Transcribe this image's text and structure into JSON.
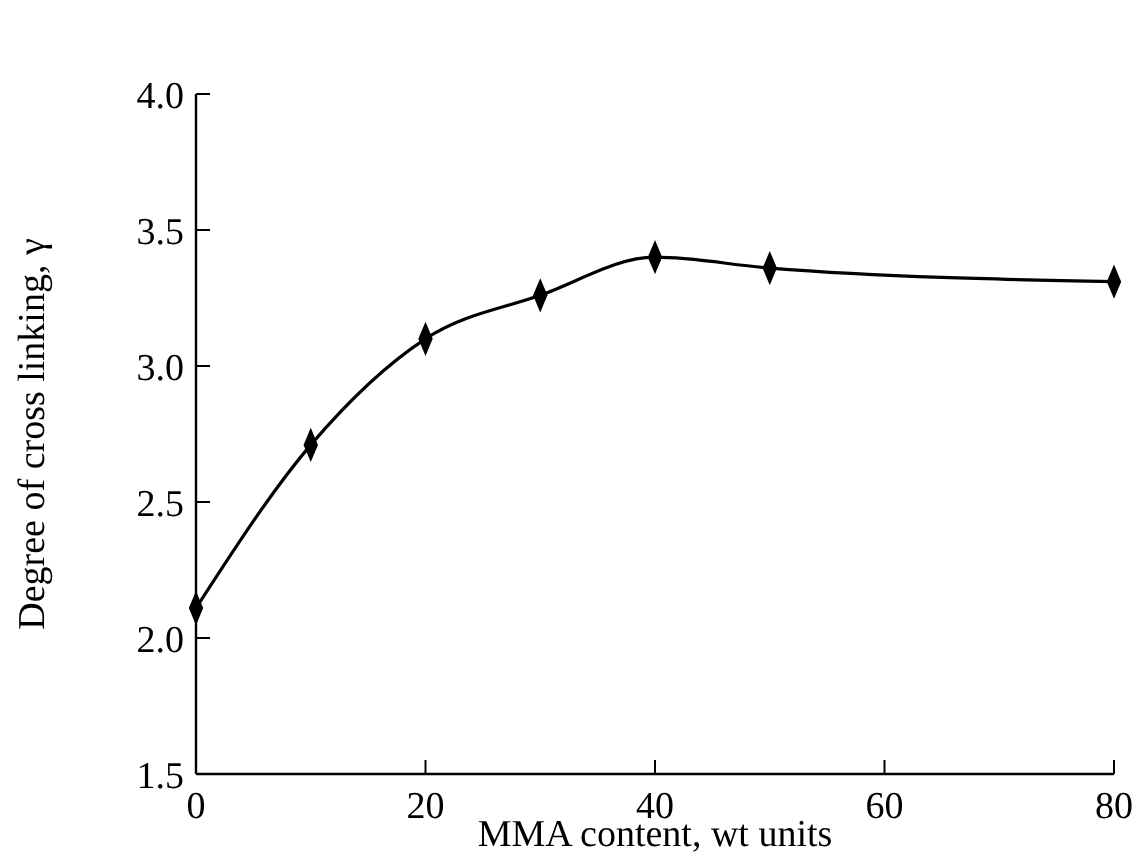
{
  "chart_data": {
    "type": "line",
    "xlabel": "MMA content, wt units",
    "ylabel": "Degree of cross linking, γ",
    "x": [
      0,
      10,
      20,
      30,
      40,
      50,
      80
    ],
    "series": [
      {
        "color": "#000000",
        "values": [
          2.11,
          2.71,
          3.1,
          3.26,
          3.4,
          3.36,
          3.31
        ]
      }
    ],
    "xlim": [
      0,
      80
    ],
    "xticks": [
      0,
      20,
      40,
      60,
      80
    ],
    "ylim": [
      1.5,
      4.0
    ],
    "yticks": [
      {
        "value": 1.5,
        "label": "1.5"
      },
      {
        "value": 2.0,
        "label": "2.0"
      },
      {
        "value": 2.5,
        "label": "2.5"
      },
      {
        "value": 3.0,
        "label": "3.0"
      },
      {
        "value": 3.5,
        "label": "3.5"
      },
      {
        "value": 4.0,
        "label": "4.0"
      }
    ],
    "marker": "diamond",
    "line_style": "solid",
    "grid": false
  }
}
